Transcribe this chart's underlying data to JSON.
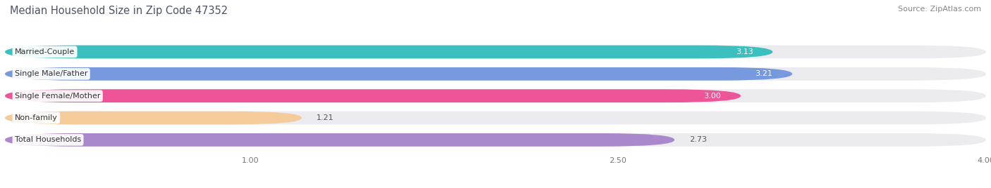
{
  "title": "Median Household Size in Zip Code 47352",
  "source": "Source: ZipAtlas.com",
  "categories": [
    "Married-Couple",
    "Single Male/Father",
    "Single Female/Mother",
    "Non-family",
    "Total Households"
  ],
  "values": [
    3.13,
    3.21,
    3.0,
    1.21,
    2.73
  ],
  "bar_colors": [
    "#3bbfbf",
    "#7799dd",
    "#ee5599",
    "#f5cc99",
    "#aa88cc"
  ],
  "value_text_colors": [
    "white",
    "white",
    "white",
    "#555555",
    "#555555"
  ],
  "xlim_min": 0.0,
  "xlim_max": 4.0,
  "xticks": [
    1.0,
    2.5,
    4.0
  ],
  "xtick_labels": [
    "1.00",
    "2.50",
    "4.00"
  ],
  "background_color": "#ffffff",
  "bar_bg_color": "#ebebf0",
  "plot_bg_color": "#f7f7f9",
  "title_fontsize": 10.5,
  "source_fontsize": 8,
  "label_fontsize": 8,
  "value_fontsize": 8,
  "bar_height": 0.6,
  "bar_spacing": 1.0
}
